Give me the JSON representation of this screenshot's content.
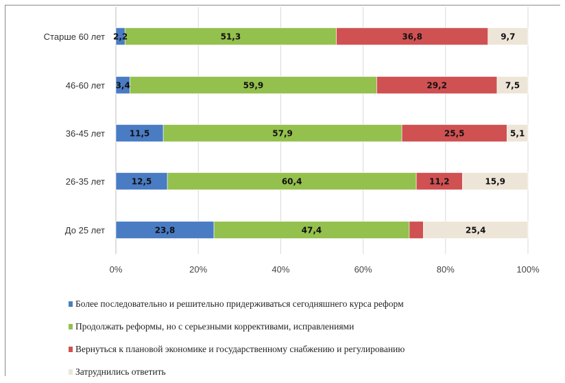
{
  "chart_data": {
    "type": "bar",
    "orientation": "horizontal",
    "stacked": true,
    "categories": [
      "Старше 60 лет",
      "46-60 лет",
      "36-45 лет",
      "26-35 лет",
      "До 25 лет"
    ],
    "series": [
      {
        "name": "Более последовательно и решительно придерживаться сегодняшнего курса реформ",
        "color": "#4a7cc4",
        "values": [
          2.2,
          3.4,
          11.5,
          12.5,
          23.8
        ],
        "labels": [
          "2,2",
          "3,4",
          "11,5",
          "12,5",
          "23,8"
        ]
      },
      {
        "name": "Продолжать реформы, но с серьезными коррективами, исправлениями",
        "color": "#94c04e",
        "values": [
          51.3,
          59.9,
          57.9,
          60.4,
          47.4
        ],
        "labels": [
          "51,3",
          "59,9",
          "57,9",
          "60,4",
          "47,4"
        ]
      },
      {
        "name": "Вернуться к плановой экономике и государственному снабжению и регулированию",
        "color": "#d05152",
        "values": [
          36.8,
          29.2,
          25.5,
          11.2,
          3.4
        ],
        "labels": [
          "36,8",
          "29,2",
          "25,5",
          "11,2",
          ""
        ]
      },
      {
        "name": "Затруднились ответить",
        "color": "#ede6d8",
        "values": [
          9.7,
          7.5,
          5.1,
          15.9,
          25.4
        ],
        "labels": [
          "9,7",
          "7,5",
          "5,1",
          "15,9",
          "25,4"
        ]
      }
    ],
    "xlim": [
      0,
      100
    ],
    "xticks": [
      "0%",
      "20%",
      "40%",
      "60%",
      "80%",
      "100%"
    ],
    "grid": true,
    "legend_position": "bottom"
  }
}
